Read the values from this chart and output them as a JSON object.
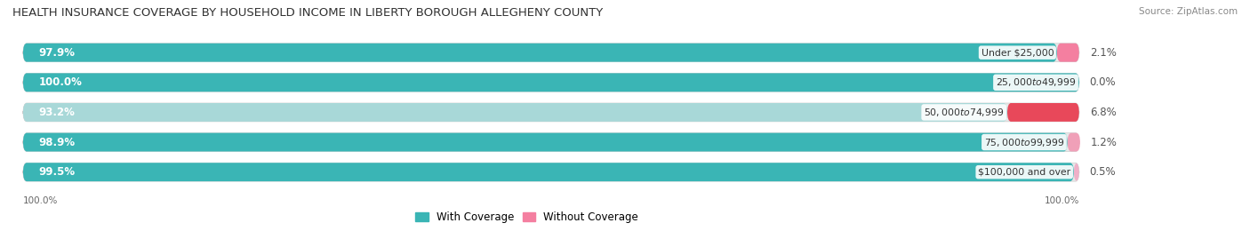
{
  "title": "HEALTH INSURANCE COVERAGE BY HOUSEHOLD INCOME IN LIBERTY BOROUGH ALLEGHENY COUNTY",
  "source": "Source: ZipAtlas.com",
  "categories": [
    "Under $25,000",
    "$25,000 to $49,999",
    "$50,000 to $74,999",
    "$75,000 to $99,999",
    "$100,000 and over"
  ],
  "with_coverage": [
    97.9,
    100.0,
    93.2,
    98.9,
    99.5
  ],
  "without_coverage": [
    2.1,
    0.0,
    6.8,
    1.2,
    0.5
  ],
  "with_coverage_labels": [
    "97.9%",
    "100.0%",
    "93.2%",
    "98.9%",
    "99.5%"
  ],
  "without_coverage_labels": [
    "2.1%",
    "0.0%",
    "6.8%",
    "1.2%",
    "0.5%"
  ],
  "colors_with": [
    "#3ab5b5",
    "#3ab5b5",
    "#a8d8d8",
    "#3ab5b5",
    "#3ab5b5"
  ],
  "colors_without": [
    "#f47fa0",
    "#f47fa0",
    "#e8485a",
    "#f0a0b8",
    "#f0b0c8"
  ],
  "bar_bg": "#e8e8e8",
  "axis_label_left": "100.0%",
  "axis_label_right": "100.0%",
  "legend_with": "With Coverage",
  "legend_without": "Without Coverage",
  "legend_color_with": "#3ab5b5",
  "legend_color_without": "#f47fa0",
  "title_fontsize": 9.5,
  "label_fontsize": 8.5,
  "category_fontsize": 7.8,
  "source_fontsize": 7.5,
  "axis_tick_fontsize": 7.5
}
